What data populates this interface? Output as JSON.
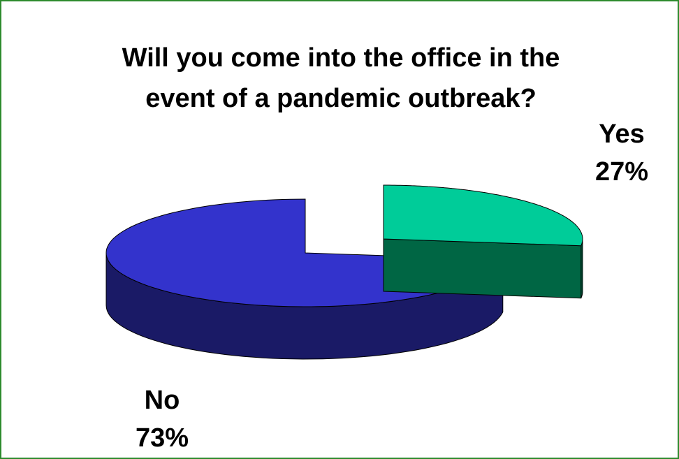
{
  "chart_data": {
    "type": "pie",
    "title_lines": [
      "Will you come into the office in the",
      "event of a pandemic outbreak?"
    ],
    "slices": [
      {
        "label": "Yes",
        "value": 27,
        "value_label": "27%",
        "top_color": "#00cc99",
        "side_color": "#006644",
        "exploded": true
      },
      {
        "label": "No",
        "value": 73,
        "value_label": "73%",
        "top_color": "#3333cc",
        "side_color": "#1a1a66",
        "exploded": false
      }
    ],
    "style": "3d-exploded",
    "legend": "none"
  },
  "colors": {
    "border": "#2e8b2e",
    "background": "#ffffff"
  }
}
